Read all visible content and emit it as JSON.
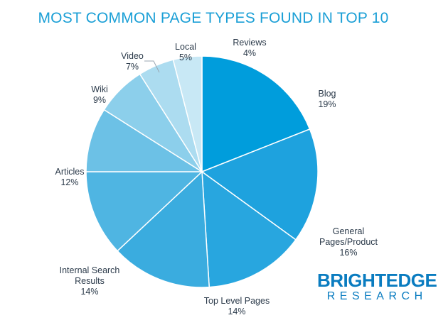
{
  "chart_data": {
    "type": "pie",
    "title": "MOST COMMON PAGE TYPES FOUND IN TOP 10",
    "slices": [
      {
        "label": "Blog",
        "value": 19,
        "value_label": "19%",
        "color": "#009ddc"
      },
      {
        "label": "General Pages/Product",
        "value": 16,
        "value_label": "16%",
        "color": "#1ea2de"
      },
      {
        "label": "Top Level Pages",
        "value": 14,
        "value_label": "14%",
        "color": "#28a6df"
      },
      {
        "label": "Internal Search Results",
        "value": 14,
        "value_label": "14%",
        "color": "#3aacdf"
      },
      {
        "label": "Articles",
        "value": 12,
        "value_label": "12%",
        "color": "#4fb5e2"
      },
      {
        "label": "Wiki",
        "value": 9,
        "value_label": "9%",
        "color": "#6cc1e6"
      },
      {
        "label": "Video",
        "value": 7,
        "value_label": "7%",
        "color": "#8ccfeb"
      },
      {
        "label": "Local",
        "value": 5,
        "value_label": "5%",
        "color": "#acdcf0"
      },
      {
        "label": "Reviews",
        "value": 4,
        "value_label": "4%",
        "color": "#c8e8f5"
      }
    ]
  },
  "brand": {
    "line1": "BRIGHTEDGE",
    "line2": "RESEARCH",
    "color": "#0a7cc0"
  },
  "title_color": "#1a9fd6"
}
